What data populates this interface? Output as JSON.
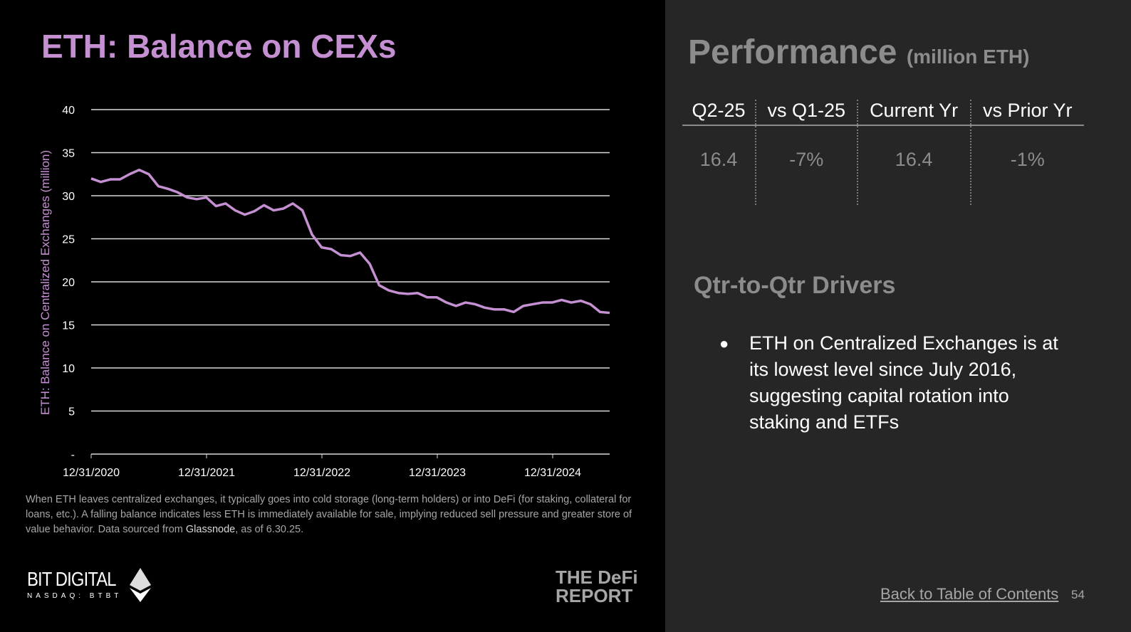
{
  "left": {
    "title": "ETH: Balance on CEXs",
    "caption_pre": "When ETH leaves centralized exchanges, it typically goes into cold storage (long-term holders) or into DeFi (for staking, collateral for loans, etc.). A falling balance indicates less ETH is immediately available for sale, implying reduced sell pressure and greater store of value behavior. Data sourced from ",
    "caption_link": "Glassnode",
    "caption_post": ", as of 6.30.25.",
    "logo_bitdigital": "BIT DIGITAL",
    "logo_bitdigital_sub": "NASDAQ: BTBT",
    "logo_defi_line1": "THE DeFi",
    "logo_defi_line2": "REPORT"
  },
  "chart_data": {
    "type": "line",
    "ylabel": "ETH: Balance on Centralized Exchanges (million)",
    "ylim": [
      0,
      40
    ],
    "yticks": [
      "-",
      "5",
      "10",
      "15",
      "20",
      "25",
      "30",
      "35",
      "40"
    ],
    "xticks": [
      "12/31/2020",
      "12/31/2021",
      "12/31/2022",
      "12/31/2023",
      "12/31/2024"
    ],
    "grid": true,
    "color": "#c490d1",
    "x": [
      "2020-12",
      "2021-01",
      "2021-02",
      "2021-03",
      "2021-04",
      "2021-05",
      "2021-06",
      "2021-07",
      "2021-08",
      "2021-09",
      "2021-10",
      "2021-11",
      "2021-12",
      "2022-01",
      "2022-02",
      "2022-03",
      "2022-04",
      "2022-05",
      "2022-06",
      "2022-07",
      "2022-08",
      "2022-09",
      "2022-10",
      "2022-11",
      "2022-12",
      "2023-01",
      "2023-02",
      "2023-03",
      "2023-04",
      "2023-05",
      "2023-06",
      "2023-07",
      "2023-08",
      "2023-09",
      "2023-10",
      "2023-11",
      "2023-12",
      "2024-01",
      "2024-02",
      "2024-03",
      "2024-04",
      "2024-05",
      "2024-06",
      "2024-07",
      "2024-08",
      "2024-09",
      "2024-10",
      "2024-11",
      "2024-12",
      "2025-01",
      "2025-02",
      "2025-03",
      "2025-04",
      "2025-05",
      "2025-06"
    ],
    "values": [
      32.0,
      31.6,
      31.9,
      31.9,
      32.5,
      33.0,
      32.5,
      31.1,
      30.8,
      30.4,
      29.8,
      29.6,
      29.8,
      28.8,
      29.1,
      28.3,
      27.8,
      28.2,
      28.9,
      28.3,
      28.5,
      29.1,
      28.3,
      25.5,
      24.0,
      23.8,
      23.1,
      23.0,
      23.4,
      22.1,
      19.6,
      19.0,
      18.7,
      18.6,
      18.7,
      18.2,
      18.2,
      17.6,
      17.2,
      17.6,
      17.4,
      17.0,
      16.8,
      16.8,
      16.5,
      17.2,
      17.4,
      17.6,
      17.6,
      17.9,
      17.6,
      17.8,
      17.4,
      16.5,
      16.4
    ]
  },
  "right": {
    "title": "Performance",
    "unit": "(million ETH)",
    "table": {
      "headers": [
        "Q2-25",
        "vs Q1-25",
        "Current Yr",
        "vs Prior Yr"
      ],
      "values": [
        "16.4",
        "-7%",
        "16.4",
        "-1%"
      ]
    },
    "drivers_title": "Qtr-to-Qtr Drivers",
    "bullets": [
      "ETH on Centralized Exchanges is at its lowest level since July 2016, suggesting capital rotation into staking and ETFs"
    ],
    "back_link": "Back to Table of Contents",
    "page_number": "54"
  }
}
